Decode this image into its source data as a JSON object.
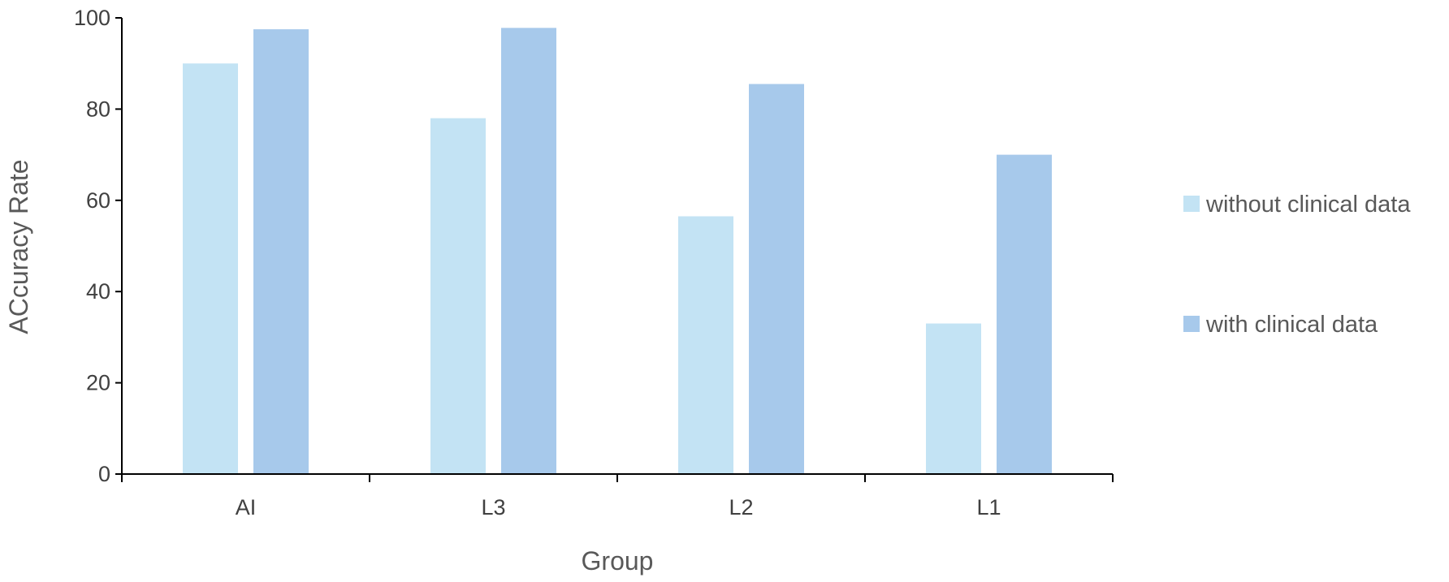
{
  "chart_data": {
    "type": "bar",
    "title": "",
    "xlabel": "Group",
    "ylabel": "ACcuracy Rate",
    "categories": [
      "AI",
      "L3",
      "L2",
      "L1"
    ],
    "series": [
      {
        "name": "without clinical data",
        "values": [
          90,
          78,
          56.5,
          33
        ],
        "color": "#c3e3f4"
      },
      {
        "name": "with clinical data",
        "values": [
          97.5,
          97.8,
          85.5,
          70
        ],
        "color": "#a7c9eb"
      }
    ],
    "ylim": [
      0,
      100
    ],
    "yticks": [
      "0",
      "20",
      "40",
      "60",
      "80",
      "100"
    ],
    "grid": false,
    "legend_position": "right"
  }
}
